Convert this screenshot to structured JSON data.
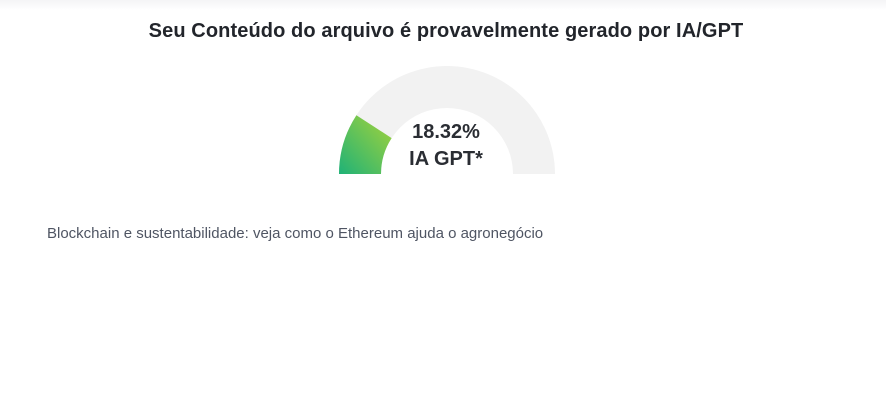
{
  "result": {
    "heading": "Seu Conteúdo do arquivo é provavelmente gerado por IA/GPT",
    "gauge": {
      "percent": 18.32,
      "percent_label": "18.32%",
      "label": "IA GPT*",
      "track_color": "#f2f2f2",
      "fill_color_start": "#1fb277",
      "fill_color_end": "#a6d33a"
    },
    "file_title": "Blockchain e sustentabilidade: veja como o Ethereum ajuda o agronegócio"
  }
}
